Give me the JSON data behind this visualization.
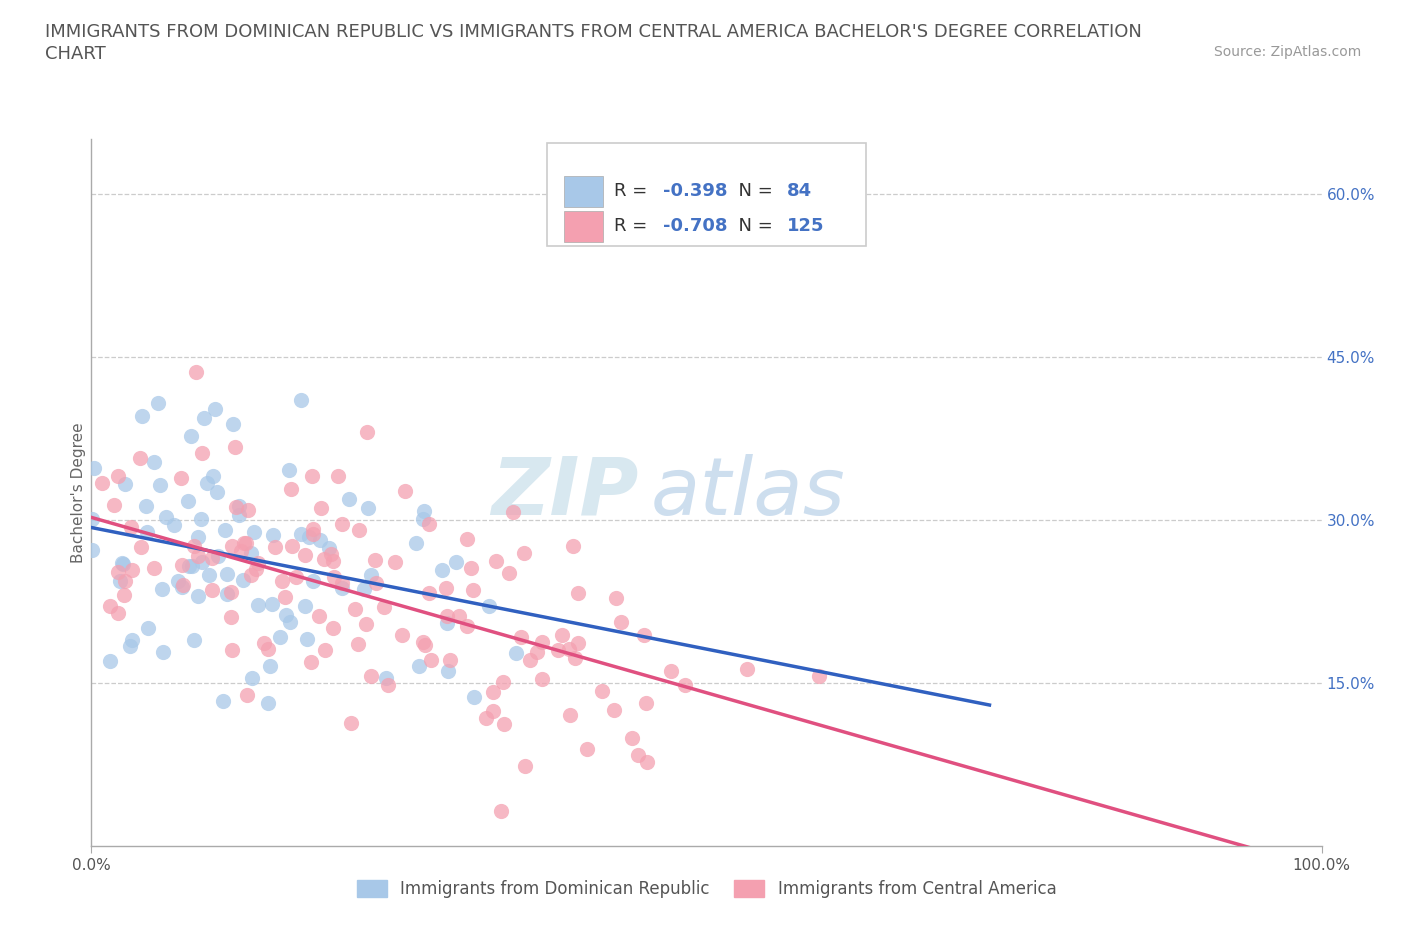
{
  "title_line1": "IMMIGRANTS FROM DOMINICAN REPUBLIC VS IMMIGRANTS FROM CENTRAL AMERICA BACHELOR'S DEGREE CORRELATION",
  "title_line2": "CHART",
  "source_text": "Source: ZipAtlas.com",
  "blue_R": -0.398,
  "blue_N": 84,
  "pink_R": -0.708,
  "pink_N": 125,
  "blue_color": "#a8c8e8",
  "pink_color": "#f4a0b0",
  "blue_line_color": "#3060c0",
  "pink_line_color": "#e05080",
  "bg_color": "#ffffff",
  "ylabel": "Bachelor's Degree",
  "xmin": 0.0,
  "xmax": 1.0,
  "ymin": 0.0,
  "ymax": 0.65,
  "y_tick_labels": [
    "15.0%",
    "30.0%",
    "45.0%",
    "60.0%"
  ],
  "y_tick_values": [
    0.15,
    0.3,
    0.45,
    0.6
  ],
  "legend_label_blue": "Immigrants from Dominican Republic",
  "legend_label_pink": "Immigrants from Central America",
  "watermark_zip": "ZIP",
  "watermark_atlas": "atlas",
  "title_fontsize": 13,
  "axis_label_fontsize": 11,
  "tick_fontsize": 11,
  "legend_fontsize": 12,
  "source_fontsize": 10
}
